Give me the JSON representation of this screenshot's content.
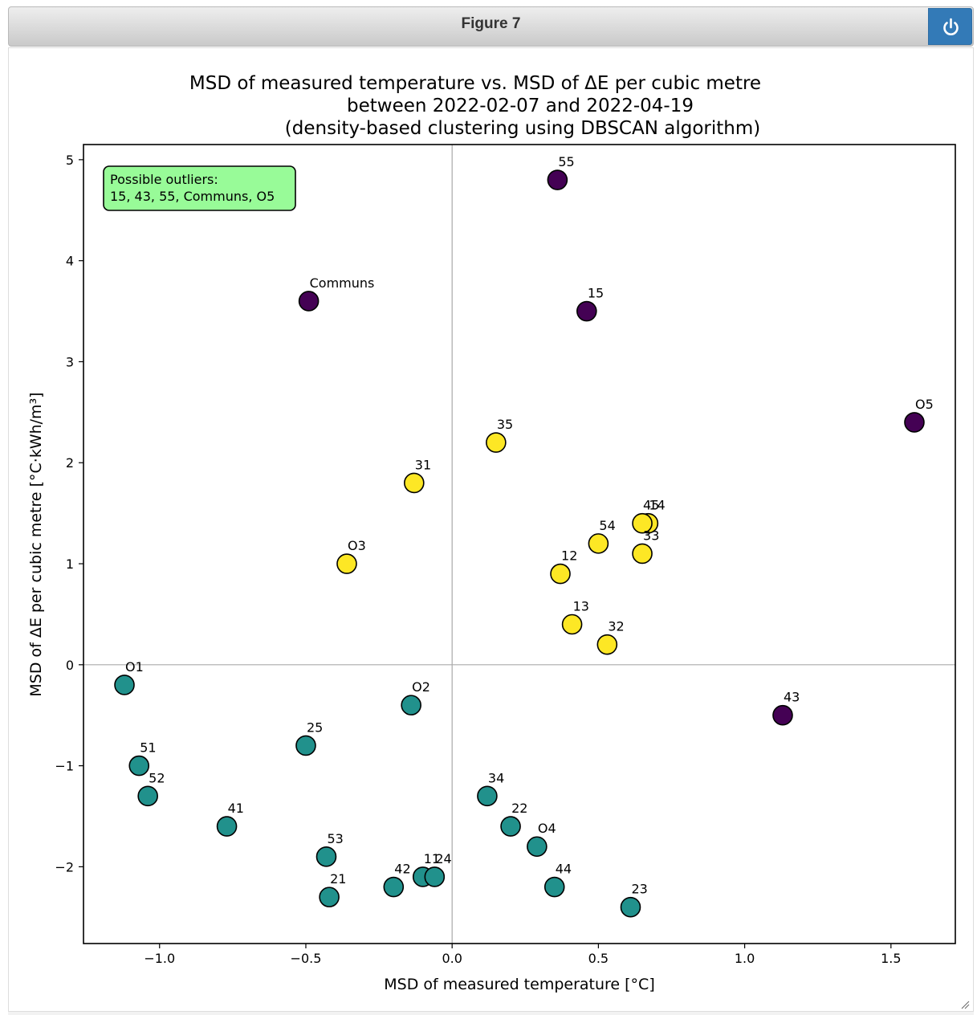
{
  "window": {
    "title": "Figure 7"
  },
  "chart_data": {
    "type": "scatter",
    "title_lines": [
      "MSD of measured temperature vs. MSD of ΔE per cubic metre",
      "between 2022-02-07 and 2022-04-19",
      "(density-based clustering using DBSCAN algorithm)"
    ],
    "xlabel": "MSD of measured temperature [°C]",
    "ylabel": "MSD of ΔE per cubic metre [°C·kWh/m³]",
    "xlim": [
      -1.26,
      1.72
    ],
    "ylim": [
      -2.76,
      5.15
    ],
    "xticks": [
      -1.0,
      -0.5,
      0.0,
      0.5,
      1.0,
      1.5
    ],
    "xtick_labels": [
      "−1.0",
      "−0.5",
      "0.0",
      "0.5",
      "1.0",
      "1.5"
    ],
    "yticks": [
      -2,
      -1,
      0,
      1,
      2,
      3,
      4,
      5
    ],
    "ytick_labels": [
      "−2",
      "−1",
      "0",
      "1",
      "2",
      "3",
      "4",
      "5"
    ],
    "reference_lines": {
      "x": 0,
      "y": 0
    },
    "grid": false,
    "annotation": {
      "text_lines": [
        "Possible outliers:",
        "15, 43, 55, Communs, O5"
      ],
      "location": "top-left"
    },
    "cluster_colors": {
      "outlier": "#440154",
      "cluster_1": "#21918c",
      "cluster_2": "#fde725"
    },
    "points": [
      {
        "label": "55",
        "x": 0.36,
        "y": 4.8,
        "cluster": "outlier"
      },
      {
        "label": "Communs",
        "x": -0.49,
        "y": 3.6,
        "cluster": "outlier"
      },
      {
        "label": "15",
        "x": 0.46,
        "y": 3.5,
        "cluster": "outlier"
      },
      {
        "label": "O5",
        "x": 1.58,
        "y": 2.4,
        "cluster": "outlier"
      },
      {
        "label": "43",
        "x": 1.13,
        "y": -0.5,
        "cluster": "outlier"
      },
      {
        "label": "35",
        "x": 0.15,
        "y": 2.2,
        "cluster": "cluster_2"
      },
      {
        "label": "31",
        "x": -0.13,
        "y": 1.8,
        "cluster": "cluster_2"
      },
      {
        "label": "14",
        "x": 0.67,
        "y": 1.4,
        "cluster": "cluster_2"
      },
      {
        "label": "45",
        "x": 0.65,
        "y": 1.4,
        "cluster": "cluster_2"
      },
      {
        "label": "54",
        "x": 0.5,
        "y": 1.2,
        "cluster": "cluster_2"
      },
      {
        "label": "33",
        "x": 0.65,
        "y": 1.1,
        "cluster": "cluster_2"
      },
      {
        "label": "O3",
        "x": -0.36,
        "y": 1.0,
        "cluster": "cluster_2"
      },
      {
        "label": "12",
        "x": 0.37,
        "y": 0.9,
        "cluster": "cluster_2"
      },
      {
        "label": "13",
        "x": 0.41,
        "y": 0.4,
        "cluster": "cluster_2"
      },
      {
        "label": "32",
        "x": 0.53,
        "y": 0.2,
        "cluster": "cluster_2"
      },
      {
        "label": "O1",
        "x": -1.12,
        "y": -0.2,
        "cluster": "cluster_1"
      },
      {
        "label": "O2",
        "x": -0.14,
        "y": -0.4,
        "cluster": "cluster_1"
      },
      {
        "label": "25",
        "x": -0.5,
        "y": -0.8,
        "cluster": "cluster_1"
      },
      {
        "label": "51",
        "x": -1.07,
        "y": -1.0,
        "cluster": "cluster_1"
      },
      {
        "label": "52",
        "x": -1.04,
        "y": -1.3,
        "cluster": "cluster_1"
      },
      {
        "label": "41",
        "x": -0.77,
        "y": -1.6,
        "cluster": "cluster_1"
      },
      {
        "label": "34",
        "x": 0.12,
        "y": -1.3,
        "cluster": "cluster_1"
      },
      {
        "label": "22",
        "x": 0.2,
        "y": -1.6,
        "cluster": "cluster_1"
      },
      {
        "label": "O4",
        "x": 0.29,
        "y": -1.8,
        "cluster": "cluster_1"
      },
      {
        "label": "53",
        "x": -0.43,
        "y": -1.9,
        "cluster": "cluster_1"
      },
      {
        "label": "44",
        "x": 0.35,
        "y": -2.2,
        "cluster": "cluster_1"
      },
      {
        "label": "42",
        "x": -0.2,
        "y": -2.2,
        "cluster": "cluster_1"
      },
      {
        "label": "11",
        "x": -0.1,
        "y": -2.1,
        "cluster": "cluster_1"
      },
      {
        "label": "24",
        "x": -0.06,
        "y": -2.1,
        "cluster": "cluster_1"
      },
      {
        "label": "21",
        "x": -0.42,
        "y": -2.3,
        "cluster": "cluster_1"
      },
      {
        "label": "23",
        "x": 0.61,
        "y": -2.4,
        "cluster": "cluster_1"
      }
    ]
  }
}
